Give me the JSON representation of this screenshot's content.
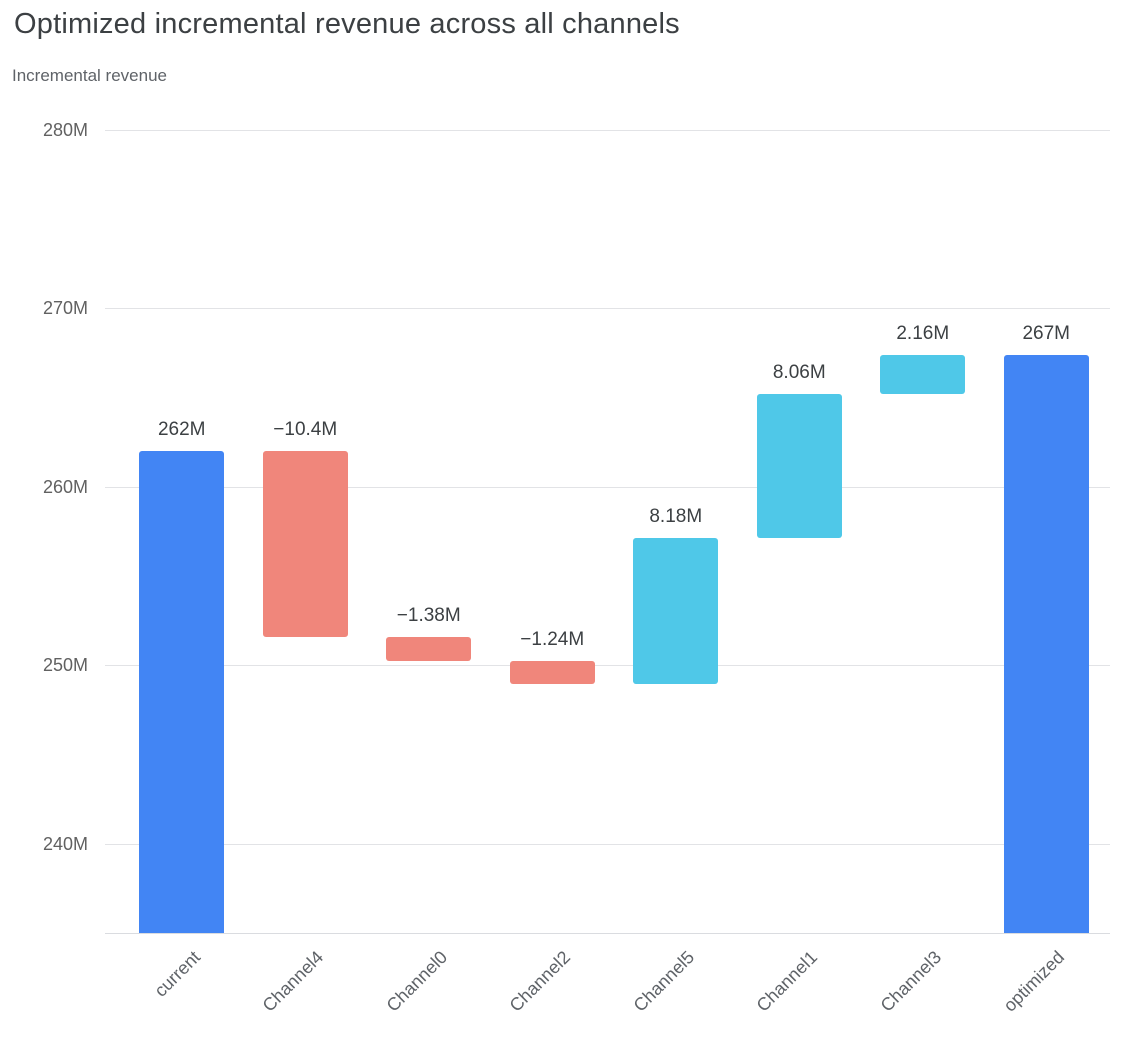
{
  "page": {
    "title": "Optimized incremental revenue across all channels",
    "subtitle": "Incremental revenue"
  },
  "chart_data": {
    "type": "bar",
    "subtype": "waterfall",
    "title": "Optimized incremental revenue across all channels",
    "ylabel": "Incremental revenue",
    "xlabel": "",
    "grid": true,
    "legend": "none",
    "ylim": [
      235,
      280
    ],
    "y_ticks": [
      {
        "value": 280,
        "label": "280M"
      },
      {
        "value": 270,
        "label": "270M"
      },
      {
        "value": 260,
        "label": "260M"
      },
      {
        "value": 250,
        "label": "250M"
      },
      {
        "value": 240,
        "label": "240M"
      }
    ],
    "categories": [
      "current",
      "Channel4",
      "Channel0",
      "Channel2",
      "Channel5",
      "Channel1",
      "Channel3",
      "optimized"
    ],
    "bars": [
      {
        "label": "current",
        "kind": "total",
        "value": 262,
        "display": "262M"
      },
      {
        "label": "Channel4",
        "kind": "decrease",
        "value": -10.4,
        "display": "−10.4M"
      },
      {
        "label": "Channel0",
        "kind": "decrease",
        "value": -1.38,
        "display": "−1.38M"
      },
      {
        "label": "Channel2",
        "kind": "decrease",
        "value": -1.24,
        "display": "−1.24M"
      },
      {
        "label": "Channel5",
        "kind": "increase",
        "value": 8.18,
        "display": "8.18M"
      },
      {
        "label": "Channel1",
        "kind": "increase",
        "value": 8.06,
        "display": "8.06M"
      },
      {
        "label": "Channel3",
        "kind": "increase",
        "value": 2.16,
        "display": "2.16M"
      },
      {
        "label": "optimized",
        "kind": "total",
        "value": null,
        "display": "267M"
      }
    ],
    "colors": {
      "total": "#4285f4",
      "decrease": "#f0867b",
      "increase": "#4fc8e8",
      "gridline": "#e2e3e6",
      "axis_text": "#5f6368",
      "label_text": "#3c4043"
    }
  }
}
